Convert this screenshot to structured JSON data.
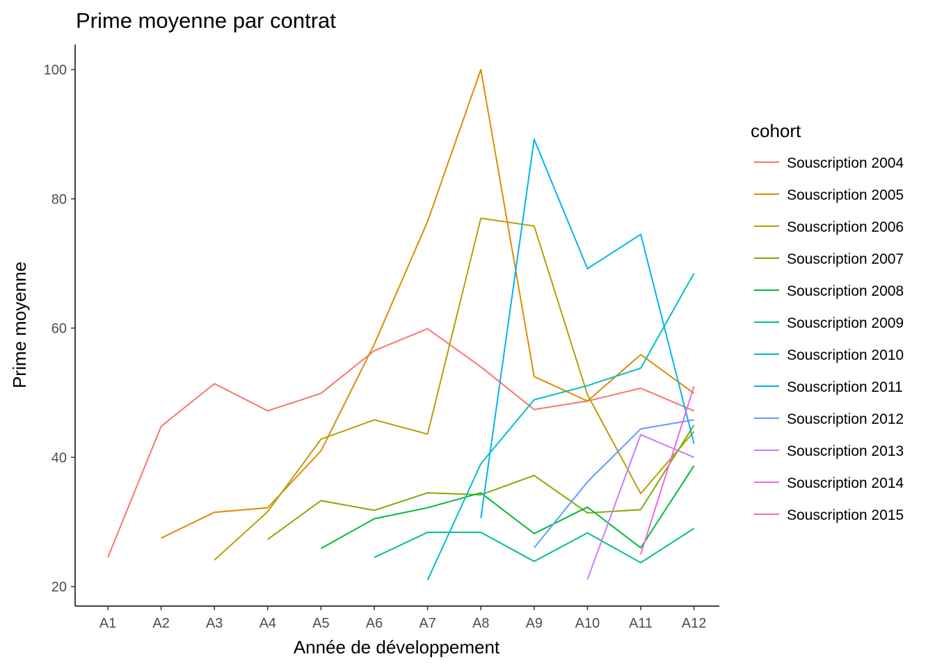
{
  "chart_data": {
    "type": "line",
    "title": "Prime moyenne par contrat",
    "xlabel": "Année de développement",
    "ylabel": "Prime moyenne",
    "categories": [
      "A1",
      "A2",
      "A3",
      "A4",
      "A5",
      "A6",
      "A7",
      "A8",
      "A9",
      "A10",
      "A11",
      "A12"
    ],
    "y_ticks": [
      20,
      40,
      60,
      80,
      100
    ],
    "ylim": [
      17,
      104
    ],
    "grid": false,
    "legend": {
      "title": "cohort",
      "position": "right"
    },
    "series": [
      {
        "name": "Souscription 2004",
        "color": "#F8766D",
        "values": [
          24.5,
          44.8,
          51.4,
          47.2,
          49.9,
          56.5,
          59.9,
          54.0,
          47.4,
          48.7,
          50.7,
          47.2
        ]
      },
      {
        "name": "Souscription 2005",
        "color": "#DE8C00",
        "values": [
          null,
          27.5,
          31.5,
          32.2,
          41.0,
          57.5,
          76.5,
          100.0,
          52.5,
          48.7,
          55.9,
          49.9
        ]
      },
      {
        "name": "Souscription 2006",
        "color": "#B79F00",
        "values": [
          null,
          null,
          24.1,
          31.6,
          42.8,
          45.8,
          43.6,
          77.0,
          75.8,
          49.7,
          34.4,
          44.0
        ]
      },
      {
        "name": "Souscription 2007",
        "color": "#7CAE00",
        "values": [
          null,
          null,
          null,
          27.3,
          33.3,
          31.8,
          34.5,
          34.2,
          37.2,
          31.4,
          31.9,
          45.0
        ]
      },
      {
        "name": "Souscription 2008",
        "color": "#00BA38",
        "values": [
          null,
          null,
          null,
          null,
          25.9,
          30.5,
          32.2,
          34.5,
          28.2,
          32.3,
          26.0,
          38.7
        ]
      },
      {
        "name": "Souscription 2009",
        "color": "#00C08B",
        "values": [
          null,
          null,
          null,
          null,
          null,
          24.5,
          28.4,
          28.4,
          23.9,
          28.3,
          23.7,
          29.0
        ]
      },
      {
        "name": "Souscription 2010",
        "color": "#00BFC4",
        "values": [
          null,
          null,
          null,
          null,
          null,
          null,
          21.0,
          39.0,
          48.9,
          51.1,
          53.8,
          68.5
        ]
      },
      {
        "name": "Souscription 2011",
        "color": "#00B4F0",
        "values": [
          null,
          null,
          null,
          null,
          null,
          null,
          null,
          30.6,
          89.2,
          69.2,
          74.5,
          42.1
        ]
      },
      {
        "name": "Souscription 2012",
        "color": "#619CFF",
        "values": [
          null,
          null,
          null,
          null,
          null,
          null,
          null,
          null,
          26.0,
          36.2,
          44.4,
          45.8
        ]
      },
      {
        "name": "Souscription 2013",
        "color": "#C77CFF",
        "values": [
          null,
          null,
          null,
          null,
          null,
          null,
          null,
          null,
          null,
          21.1,
          43.5,
          40.0
        ]
      },
      {
        "name": "Souscription 2014",
        "color": "#F564E3",
        "values": [
          null,
          null,
          null,
          null,
          null,
          null,
          null,
          null,
          null,
          null,
          25.0,
          51.0
        ]
      },
      {
        "name": "Souscription 2015",
        "color": "#FF64B0",
        "values": [
          null,
          null,
          null,
          null,
          null,
          null,
          null,
          null,
          null,
          null,
          null,
          50.5
        ]
      }
    ]
  }
}
